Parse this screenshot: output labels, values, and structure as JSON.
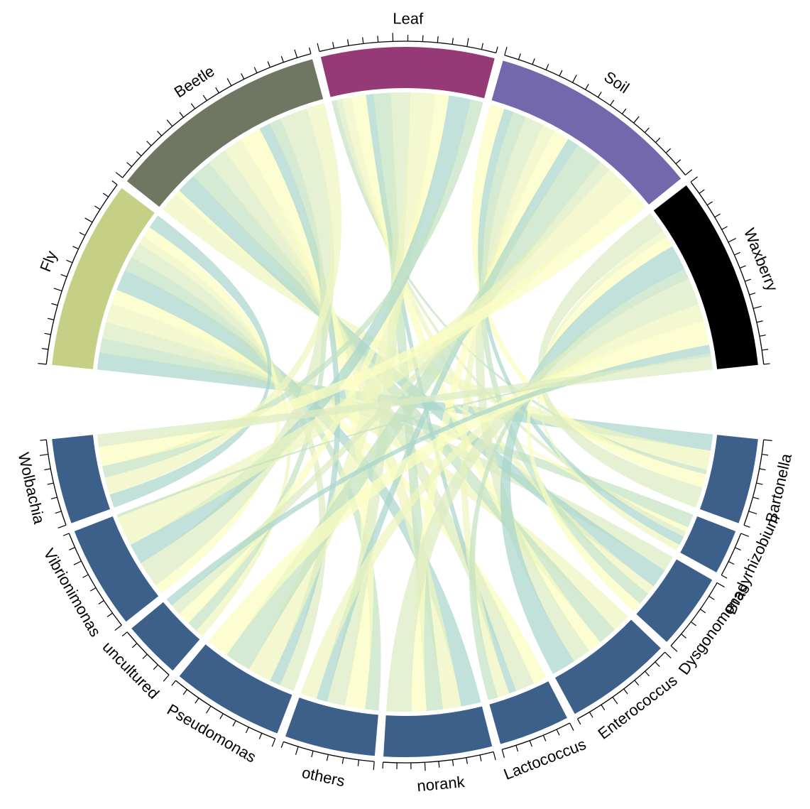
{
  "chart_data": {
    "type": "chord",
    "title": "",
    "sources": [
      {
        "name": "Fly",
        "color": "#c5cf86"
      },
      {
        "name": "Beetle",
        "color": "#6f7762"
      },
      {
        "name": "Leaf",
        "color": "#953a76"
      },
      {
        "name": "Soil",
        "color": "#7468ad"
      },
      {
        "name": "Waxberry",
        "color": "#000000"
      }
    ],
    "targets": [
      {
        "name": "Bartonella",
        "color": "#3d608a"
      },
      {
        "name": "Bradyrhizobium",
        "color": "#3d608a"
      },
      {
        "name": "Dysgonomonas",
        "color": "#3d608a"
      },
      {
        "name": "Enterococcus",
        "color": "#3d608a"
      },
      {
        "name": "Lactococcus",
        "color": "#3d608a"
      },
      {
        "name": "norank",
        "color": "#3d608a"
      },
      {
        "name": "others",
        "color": "#3d608a"
      },
      {
        "name": "Pseudomonas",
        "color": "#3d608a"
      },
      {
        "name": "uncultured",
        "color": "#3d608a"
      },
      {
        "name": "Vibrionimonas",
        "color": "#3d608a"
      },
      {
        "name": "Wolbachia",
        "color": "#3d608a"
      }
    ],
    "link_colors": [
      "#a9d5cc",
      "#c4e2c2",
      "#dcecc2",
      "#eef5bf",
      "#fbfdc0"
    ],
    "matrix": [
      [
        0.36,
        0.3,
        0.34,
        0.4,
        0.3,
        0.44,
        0.3,
        0.32,
        0.18,
        0.22,
        0.3
      ],
      [
        0.42,
        0.1,
        0.42,
        0.42,
        0.42,
        0.4,
        0.44,
        0.24,
        0.24,
        0.58,
        0.38
      ],
      [
        0.1,
        0.12,
        0.2,
        0.3,
        0.16,
        0.36,
        0.4,
        0.52,
        0.28,
        0.46,
        0.26
      ],
      [
        0.3,
        0.2,
        0.28,
        0.4,
        0.26,
        0.32,
        0.24,
        0.58,
        0.24,
        0.66,
        0.42
      ],
      [
        0.46,
        0.14,
        0.22,
        0.54,
        0.22,
        0.56,
        0.36,
        0.5,
        0.18,
        0.06,
        0.28
      ]
    ]
  }
}
